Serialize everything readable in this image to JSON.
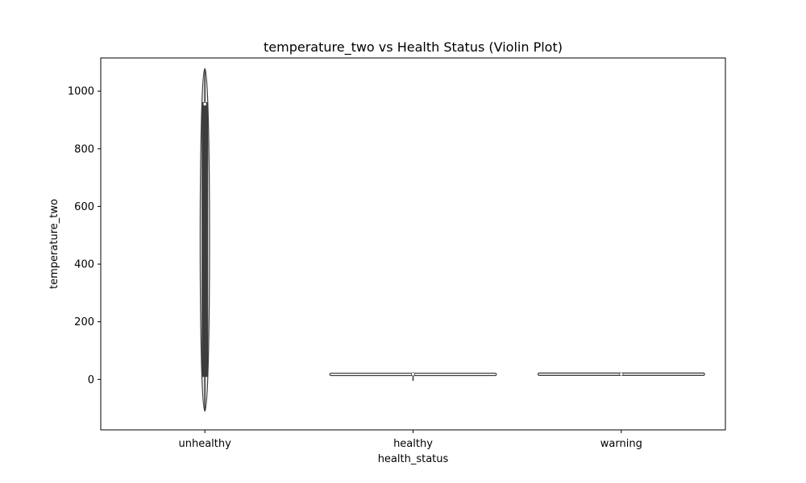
{
  "chart_data": {
    "type": "violin",
    "title": "temperature_two vs Health Status (Violin Plot)",
    "xlabel": "health_status",
    "ylabel": "temperature_two",
    "ylim": [
      -175,
      1115
    ],
    "yticks": [
      0,
      200,
      400,
      600,
      800,
      1000
    ],
    "grid": false,
    "categories": [
      "unhealthy",
      "healthy",
      "warning"
    ],
    "violins": [
      {
        "category": "unhealthy",
        "min": -110,
        "q1": 10,
        "median": 955,
        "q3": 960,
        "max": 1078,
        "body_low": 10,
        "body_high": 960,
        "max_halfwidth": 0.03
      },
      {
        "category": "healthy",
        "min": -5,
        "q1": 15,
        "median": 18,
        "q3": 20,
        "max": 25,
        "body_low": 15,
        "body_high": 20,
        "max_halfwidth": 0.4
      },
      {
        "category": "warning",
        "min": 15,
        "q1": 16,
        "median": 18,
        "q3": 20,
        "max": 24,
        "body_low": 16,
        "body_high": 20,
        "max_halfwidth": 0.4
      }
    ],
    "colors": {
      "body": "#ededed",
      "edge": "#3d3d3d",
      "box": "#3d3d3d",
      "median": "#ffffff"
    }
  }
}
